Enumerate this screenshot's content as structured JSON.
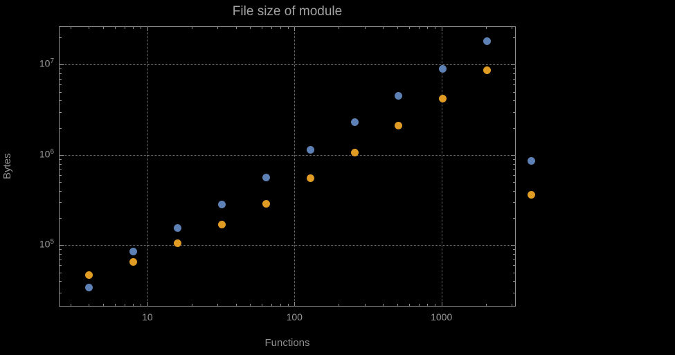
{
  "figure": {
    "background": "#000000",
    "frame_color": "#8f8f8f",
    "grid_color": "#757575",
    "text_color": "#999999"
  },
  "chart_data": {
    "type": "scatter",
    "title": "File size of module",
    "xlabel": "Functions",
    "ylabel": "Bytes",
    "x_scale": "log",
    "y_scale": "log",
    "xlim": [
      2.5,
      3200
    ],
    "ylim": [
      21000,
      26500000
    ],
    "x_ticks": [
      10,
      100,
      1000
    ],
    "y_ticks": [
      100000,
      1000000,
      10000000
    ],
    "grid": "dotted-major",
    "legend": "none",
    "x": [
      4,
      8,
      16,
      32,
      64,
      128,
      256,
      512,
      1024,
      2048,
      4096
    ],
    "series": [
      {
        "name": "blue",
        "color": "#5e81b5",
        "values": [
          34000,
          85000,
          155000,
          285000,
          560000,
          1130000,
          2300000,
          4500000,
          9000000,
          18000000,
          860000
        ]
      },
      {
        "name": "orange",
        "color": "#e19c24",
        "values": [
          47000,
          66000,
          105000,
          170000,
          290000,
          550000,
          1070000,
          2100000,
          4200000,
          8700000,
          360000
        ]
      }
    ]
  }
}
